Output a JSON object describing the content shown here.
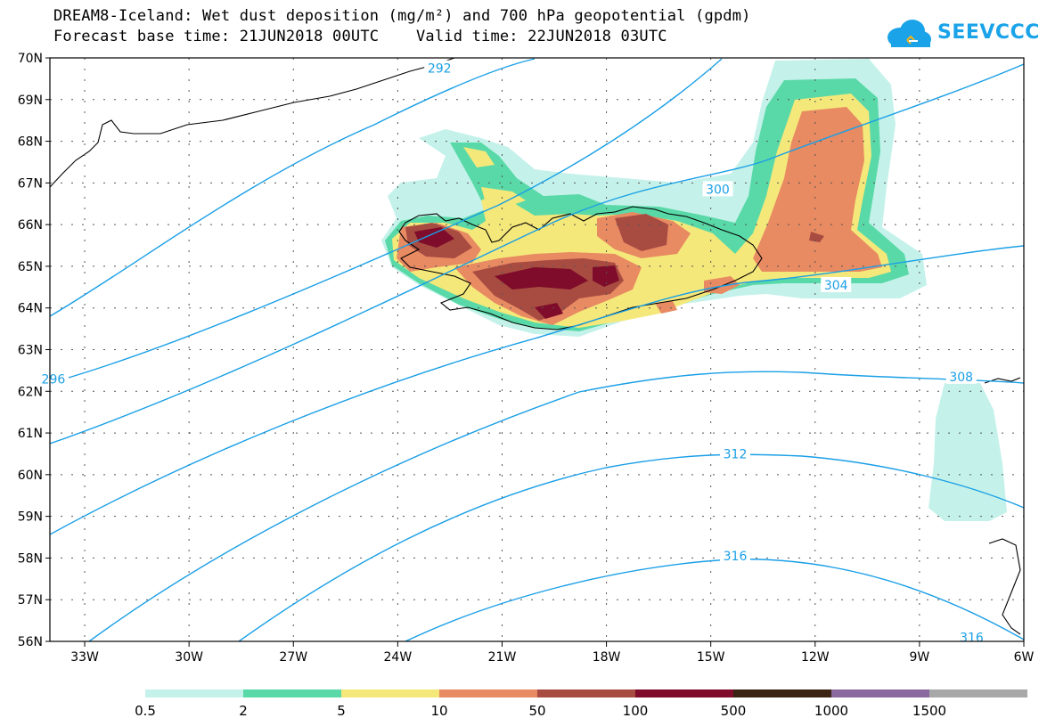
{
  "title": {
    "line1": "DREAM8-Iceland: Wet dust deposition (mg/m²) and 700 hPa geopotential (gpdm)",
    "line2": "Forecast base time: 21JUN2018 00UTC    Valid time: 22JUN2018 03UTC"
  },
  "logo": {
    "text": "SEEVCCC",
    "icon": "cloud-icon",
    "color": "#1aa3e8"
  },
  "map": {
    "lon_range": [
      -34.0,
      -6.0
    ],
    "lat_range": [
      56.0,
      70.0
    ],
    "lon_ticks": [
      {
        "value": -33,
        "label": "33W"
      },
      {
        "value": -30,
        "label": "30W"
      },
      {
        "value": -27,
        "label": "27W"
      },
      {
        "value": -24,
        "label": "24W"
      },
      {
        "value": -21,
        "label": "21W"
      },
      {
        "value": -18,
        "label": "18W"
      },
      {
        "value": -15,
        "label": "15W"
      },
      {
        "value": -12,
        "label": "12W"
      },
      {
        "value": -9,
        "label": "9W"
      },
      {
        "value": -6,
        "label": "6W"
      }
    ],
    "lat_ticks": [
      {
        "value": 70,
        "label": "70N"
      },
      {
        "value": 69,
        "label": "69N"
      },
      {
        "value": 68,
        "label": "68N"
      },
      {
        "value": 67,
        "label": "67N"
      },
      {
        "value": 66,
        "label": "66N"
      },
      {
        "value": 65,
        "label": "65N"
      },
      {
        "value": 64,
        "label": "64N"
      },
      {
        "value": 63,
        "label": "63N"
      },
      {
        "value": 62,
        "label": "62N"
      },
      {
        "value": 61,
        "label": "61N"
      },
      {
        "value": 60,
        "label": "60N"
      },
      {
        "value": 59,
        "label": "59N"
      },
      {
        "value": 58,
        "label": "58N"
      },
      {
        "value": 57,
        "label": "57N"
      },
      {
        "value": 56,
        "label": "56N"
      }
    ],
    "contour_color": "#1a9fe6",
    "contour_labels": [
      {
        "text": "292",
        "lon": -22.8,
        "lat": 69.75
      },
      {
        "text": "296",
        "lon": -33.9,
        "lat": 62.3
      },
      {
        "text": "300",
        "lon": -14.8,
        "lat": 66.85
      },
      {
        "text": "304",
        "lon": -11.4,
        "lat": 64.55
      },
      {
        "text": "308",
        "lon": -7.8,
        "lat": 62.35
      },
      {
        "text": "312",
        "lon": -14.3,
        "lat": 60.5
      },
      {
        "text": "316",
        "lon": -14.3,
        "lat": 58.05
      },
      {
        "text": "316",
        "lon": -7.5,
        "lat": 56.1
      }
    ]
  },
  "colorbar": {
    "colors": [
      "#c4f2ea",
      "#5ad9a8",
      "#f5e87a",
      "#e88a62",
      "#a84c42",
      "#7e0c2a",
      "#3c2414",
      "#8a6a9e",
      "#a8a8a8"
    ],
    "labels": [
      "0.5",
      "2",
      "5",
      "10",
      "50",
      "100",
      "500",
      "1000",
      "1500"
    ]
  }
}
